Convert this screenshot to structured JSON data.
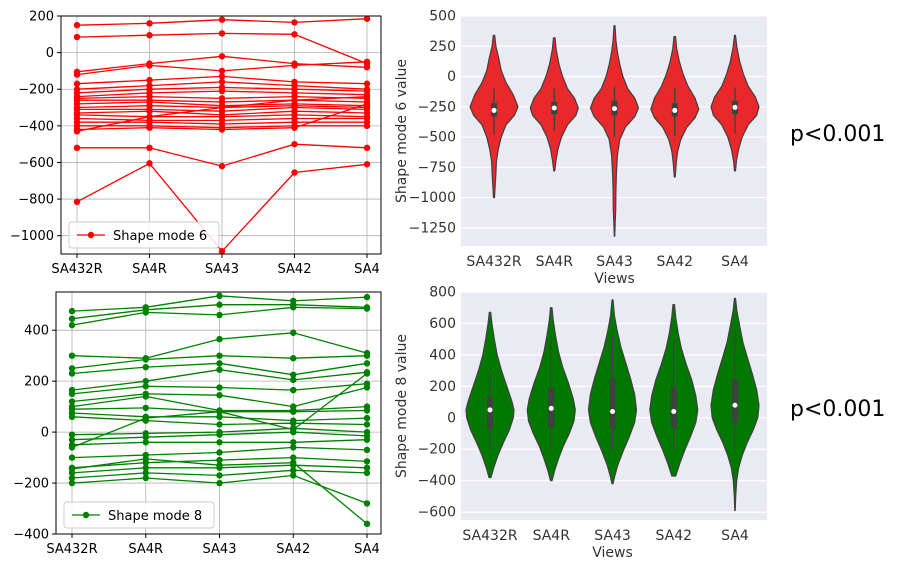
{
  "chart_data": [
    {
      "type": "line",
      "color": "#ff0000",
      "categories": [
        "SA432R",
        "SA4R",
        "SA43",
        "SA42",
        "SA4"
      ],
      "ylim": [
        -1100,
        200
      ],
      "yticks": [
        200,
        0,
        -200,
        -400,
        -600,
        -800,
        -1000
      ],
      "grid": true,
      "legend": {
        "label": "Shape mode 6",
        "placement": "lower-left"
      },
      "lines": [
        [
          150,
          160,
          180,
          165,
          185
        ],
        [
          85,
          95,
          105,
          100,
          -60
        ],
        [
          -105,
          -60,
          -20,
          -60,
          -80
        ],
        [
          -120,
          -70,
          -100,
          -70,
          -50
        ],
        [
          -170,
          -150,
          -130,
          -160,
          -170
        ],
        [
          -200,
          -180,
          -160,
          -180,
          -200
        ],
        [
          -220,
          -200,
          -190,
          -200,
          -210
        ],
        [
          -240,
          -220,
          -210,
          -220,
          -230
        ],
        [
          -250,
          -240,
          -250,
          -240,
          -250
        ],
        [
          -260,
          -260,
          -270,
          -260,
          -270
        ],
        [
          -280,
          -270,
          -290,
          -280,
          -290
        ],
        [
          -300,
          -290,
          -300,
          -290,
          -300
        ],
        [
          -310,
          -310,
          -320,
          -300,
          -310
        ],
        [
          -330,
          -320,
          -340,
          -320,
          -330
        ],
        [
          -340,
          -350,
          -350,
          -340,
          -350
        ],
        [
          -360,
          -370,
          -370,
          -360,
          -360
        ],
        [
          -380,
          -380,
          -390,
          -380,
          -380
        ],
        [
          -400,
          -400,
          -410,
          -400,
          -400
        ],
        [
          -420,
          -410,
          -420,
          -410,
          -280
        ],
        [
          -520,
          -520,
          -620,
          -500,
          -520
        ],
        [
          -815,
          -605,
          -1085,
          -655,
          -610
        ],
        [
          -430,
          -350,
          -300,
          -260,
          -240
        ]
      ]
    },
    {
      "type": "violin",
      "color": "#e8282a",
      "categories": [
        "SA432R",
        "SA4R",
        "SA43",
        "SA42",
        "SA4"
      ],
      "xlabel": "Views",
      "ylabel": "Shape mode 6 value",
      "ylim": [
        -1400,
        500
      ],
      "yticks": [
        500,
        250,
        0,
        -250,
        -500,
        -750,
        -1000,
        -1250
      ],
      "violins": [
        {
          "profile": [
            [
              340,
              0.03
            ],
            [
              250,
              0.08
            ],
            [
              150,
              0.2
            ],
            [
              50,
              0.3
            ],
            [
              -50,
              0.5
            ],
            [
              -150,
              0.8
            ],
            [
              -250,
              1.0
            ],
            [
              -320,
              0.85
            ],
            [
              -400,
              0.5
            ],
            [
              -500,
              0.3
            ],
            [
              -600,
              0.18
            ],
            [
              -700,
              0.1
            ],
            [
              -800,
              0.08
            ],
            [
              -900,
              0.05
            ],
            [
              -1000,
              0.02
            ]
          ],
          "q1": -330,
          "med": -280,
          "q3": -220,
          "wlo": -480,
          "whi": -100
        },
        {
          "profile": [
            [
              320,
              0.03
            ],
            [
              220,
              0.08
            ],
            [
              100,
              0.2
            ],
            [
              0,
              0.35
            ],
            [
              -100,
              0.55
            ],
            [
              -180,
              0.85
            ],
            [
              -260,
              1.0
            ],
            [
              -320,
              0.9
            ],
            [
              -400,
              0.55
            ],
            [
              -500,
              0.3
            ],
            [
              -600,
              0.15
            ],
            [
              -700,
              0.07
            ],
            [
              -780,
              0.02
            ]
          ],
          "q1": -310,
          "med": -260,
          "q3": -210,
          "wlo": -450,
          "whi": -100
        },
        {
          "profile": [
            [
              420,
              0.02
            ],
            [
              300,
              0.06
            ],
            [
              200,
              0.12
            ],
            [
              100,
              0.22
            ],
            [
              0,
              0.35
            ],
            [
              -100,
              0.55
            ],
            [
              -180,
              0.85
            ],
            [
              -260,
              1.0
            ],
            [
              -330,
              0.85
            ],
            [
              -420,
              0.45
            ],
            [
              -520,
              0.22
            ],
            [
              -650,
              0.12
            ],
            [
              -800,
              0.08
            ],
            [
              -950,
              0.06
            ],
            [
              -1100,
              0.05
            ],
            [
              -1200,
              0.03
            ],
            [
              -1320,
              0.01
            ]
          ],
          "q1": -320,
          "med": -265,
          "q3": -200,
          "wlo": -500,
          "whi": -80
        },
        {
          "profile": [
            [
              330,
              0.03
            ],
            [
              230,
              0.08
            ],
            [
              120,
              0.2
            ],
            [
              20,
              0.35
            ],
            [
              -80,
              0.55
            ],
            [
              -180,
              0.85
            ],
            [
              -270,
              1.0
            ],
            [
              -340,
              0.85
            ],
            [
              -420,
              0.5
            ],
            [
              -520,
              0.25
            ],
            [
              -620,
              0.12
            ],
            [
              -720,
              0.06
            ],
            [
              -830,
              0.02
            ]
          ],
          "q1": -330,
          "med": -280,
          "q3": -220,
          "wlo": -490,
          "whi": -90
        },
        {
          "profile": [
            [
              340,
              0.02
            ],
            [
              240,
              0.08
            ],
            [
              120,
              0.2
            ],
            [
              20,
              0.35
            ],
            [
              -80,
              0.55
            ],
            [
              -170,
              0.85
            ],
            [
              -250,
              1.0
            ],
            [
              -320,
              0.9
            ],
            [
              -400,
              0.55
            ],
            [
              -500,
              0.3
            ],
            [
              -600,
              0.15
            ],
            [
              -700,
              0.06
            ],
            [
              -780,
              0.02
            ]
          ],
          "q1": -310,
          "med": -255,
          "q3": -200,
          "wlo": -470,
          "whi": -90
        }
      ],
      "annotation": "p<0.001"
    },
    {
      "type": "line",
      "color": "#008000",
      "categories": [
        "SA432R",
        "SA4R",
        "SA43",
        "SA42",
        "SA4"
      ],
      "ylim": [
        -400,
        550
      ],
      "yticks": [
        400,
        200,
        0,
        -200,
        -400
      ],
      "grid": true,
      "legend": {
        "label": "Shape mode 8",
        "placement": "lower-left"
      },
      "lines": [
        [
          475,
          490,
          535,
          515,
          530
        ],
        [
          445,
          480,
          500,
          500,
          490
        ],
        [
          420,
          470,
          460,
          490,
          485
        ],
        [
          300,
          290,
          365,
          390,
          310
        ],
        [
          250,
          285,
          300,
          290,
          300
        ],
        [
          230,
          255,
          270,
          225,
          270
        ],
        [
          165,
          200,
          245,
          205,
          235
        ],
        [
          150,
          180,
          175,
          165,
          190
        ],
        [
          120,
          150,
          145,
          100,
          175
        ],
        [
          100,
          140,
          85,
          85,
          100
        ],
        [
          90,
          95,
          80,
          80,
          85
        ],
        [
          75,
          60,
          60,
          45,
          55
        ],
        [
          60,
          45,
          30,
          35,
          30
        ],
        [
          -10,
          -5,
          0,
          15,
          0
        ],
        [
          -30,
          -20,
          -10,
          0,
          -15
        ],
        [
          -50,
          -40,
          -40,
          -40,
          -30
        ],
        [
          -100,
          -90,
          -80,
          -60,
          -70
        ],
        [
          -140,
          -120,
          -110,
          -100,
          -115
        ],
        [
          -160,
          -140,
          -140,
          -130,
          -140
        ],
        [
          -180,
          -160,
          -170,
          -150,
          -160
        ],
        [
          -200,
          -180,
          -200,
          -170,
          -280
        ],
        [
          -145,
          -105,
          -130,
          -120,
          -360
        ],
        [
          -60,
          55,
          80,
          10,
          230
        ]
      ]
    },
    {
      "type": "violin",
      "color": "#007800",
      "categories": [
        "SA432R",
        "SA4R",
        "SA43",
        "SA42",
        "SA4"
      ],
      "xlabel": "Views",
      "ylabel": "Shape mode 8 value",
      "ylim": [
        -650,
        800
      ],
      "yticks": [
        800,
        600,
        400,
        200,
        0,
        -200,
        -400,
        -600
      ],
      "violins": [
        {
          "profile": [
            [
              670,
              0.03
            ],
            [
              600,
              0.08
            ],
            [
              500,
              0.18
            ],
            [
              400,
              0.3
            ],
            [
              300,
              0.48
            ],
            [
              200,
              0.7
            ],
            [
              100,
              0.92
            ],
            [
              50,
              1.0
            ],
            [
              0,
              0.97
            ],
            [
              -80,
              0.8
            ],
            [
              -160,
              0.55
            ],
            [
              -240,
              0.33
            ],
            [
              -320,
              0.15
            ],
            [
              -380,
              0.04
            ]
          ],
          "q1": -70,
          "med": 50,
          "q3": 130,
          "wlo": -200,
          "whi": 300
        },
        {
          "profile": [
            [
              700,
              0.03
            ],
            [
              620,
              0.08
            ],
            [
              520,
              0.18
            ],
            [
              420,
              0.3
            ],
            [
              320,
              0.48
            ],
            [
              220,
              0.72
            ],
            [
              120,
              0.92
            ],
            [
              50,
              1.0
            ],
            [
              -20,
              0.95
            ],
            [
              -100,
              0.75
            ],
            [
              -180,
              0.5
            ],
            [
              -260,
              0.3
            ],
            [
              -340,
              0.13
            ],
            [
              -400,
              0.03
            ]
          ],
          "q1": -60,
          "med": 60,
          "q3": 190,
          "wlo": -200,
          "whi": 500
        },
        {
          "profile": [
            [
              750,
              0.02
            ],
            [
              650,
              0.08
            ],
            [
              550,
              0.2
            ],
            [
              450,
              0.35
            ],
            [
              350,
              0.55
            ],
            [
              250,
              0.75
            ],
            [
              150,
              0.92
            ],
            [
              50,
              1.0
            ],
            [
              -30,
              0.92
            ],
            [
              -120,
              0.7
            ],
            [
              -210,
              0.45
            ],
            [
              -300,
              0.22
            ],
            [
              -380,
              0.08
            ],
            [
              -420,
              0.02
            ]
          ],
          "q1": -70,
          "med": 40,
          "q3": 250,
          "wlo": -210,
          "whi": 530
        },
        {
          "profile": [
            [
              720,
              0.03
            ],
            [
              640,
              0.08
            ],
            [
              540,
              0.18
            ],
            [
              440,
              0.32
            ],
            [
              340,
              0.52
            ],
            [
              240,
              0.75
            ],
            [
              140,
              0.92
            ],
            [
              50,
              1.0
            ],
            [
              -30,
              0.92
            ],
            [
              -120,
              0.7
            ],
            [
              -210,
              0.45
            ],
            [
              -290,
              0.25
            ],
            [
              -370,
              0.08
            ]
          ],
          "q1": -60,
          "med": 40,
          "q3": 190,
          "wlo": -200,
          "whi": 500
        },
        {
          "profile": [
            [
              760,
              0.02
            ],
            [
              680,
              0.08
            ],
            [
              580,
              0.2
            ],
            [
              480,
              0.33
            ],
            [
              380,
              0.52
            ],
            [
              280,
              0.72
            ],
            [
              180,
              0.9
            ],
            [
              80,
              1.0
            ],
            [
              0,
              0.95
            ],
            [
              -80,
              0.75
            ],
            [
              -160,
              0.5
            ],
            [
              -240,
              0.3
            ],
            [
              -320,
              0.15
            ],
            [
              -400,
              0.07
            ],
            [
              -500,
              0.03
            ],
            [
              -590,
              0.01
            ]
          ],
          "q1": -30,
          "med": 80,
          "q3": 240,
          "wlo": -200,
          "whi": 550
        }
      ],
      "annotation": "p<0.001"
    }
  ]
}
